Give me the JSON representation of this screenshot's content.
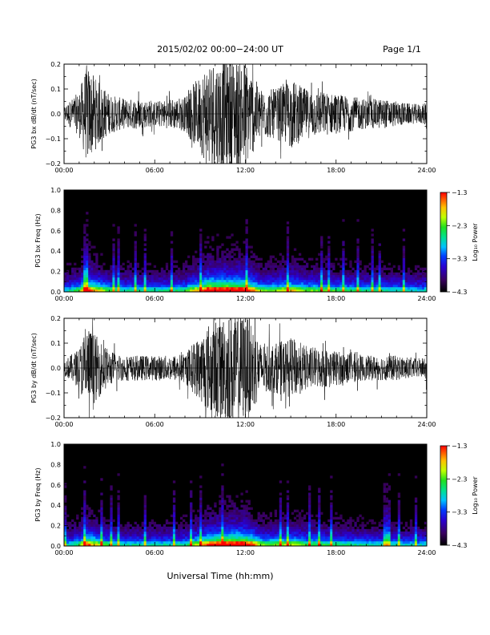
{
  "header": {
    "title": "2015/02/02  00:00−24:00 UT",
    "page": "Page 1/1"
  },
  "xlabel": "Universal Time (hh:mm)",
  "chart_data": [
    {
      "type": "line",
      "ylabel": "PG3 bx dB/dt (nT/sec)",
      "xlim": [
        "00:00",
        "24:00"
      ],
      "ylim": [
        -0.2,
        0.2
      ],
      "x_ticks": [
        "00:00",
        "06:00",
        "12:00",
        "18:00",
        "24:00"
      ],
      "y_ticks": [
        "−0.2",
        "−0.1",
        "0.0",
        "0.1",
        "0.2"
      ],
      "series_color": "#000000",
      "activity_envelope": {
        "hours": [
          0,
          1,
          1.5,
          2,
          3,
          4,
          5,
          6,
          7,
          8,
          8.5,
          9,
          9.5,
          10,
          11,
          12,
          12.5,
          13,
          14,
          15,
          15.5,
          16,
          17,
          18,
          19,
          20,
          21,
          22,
          23,
          23.8,
          24
        ],
        "amplitude": [
          0.03,
          0.09,
          0.2,
          0.15,
          0.08,
          0.06,
          0.06,
          0.05,
          0.06,
          0.07,
          0.12,
          0.15,
          0.22,
          0.22,
          0.22,
          0.22,
          0.16,
          0.1,
          0.1,
          0.14,
          0.12,
          0.1,
          0.09,
          0.08,
          0.07,
          0.06,
          0.06,
          0.05,
          0.04,
          0.04,
          0.07
        ]
      }
    },
    {
      "type": "heatmap",
      "ylabel": "PG3 bx Freq (Hz)",
      "xlim": [
        "00:00",
        "24:00"
      ],
      "ylim": [
        0,
        1.0
      ],
      "x_ticks": [
        "00:00",
        "06:00",
        "12:00",
        "18:00",
        "24:00"
      ],
      "y_ticks": [
        "0.0",
        "0.2",
        "0.4",
        "0.6",
        "0.8",
        "1.0"
      ],
      "colorbar": {
        "label": "Log₁₀ Power",
        "range": [
          -4.3,
          -1.3
        ],
        "ticks": [
          "−1.3",
          "−2.3",
          "−3.3",
          "−4.3"
        ]
      }
    },
    {
      "type": "line",
      "ylabel": "PG3 by dB/dt (nT/sec)",
      "xlim": [
        "00:00",
        "24:00"
      ],
      "ylim": [
        -0.2,
        0.2
      ],
      "x_ticks": [
        "00:00",
        "06:00",
        "12:00",
        "18:00",
        "24:00"
      ],
      "y_ticks": [
        "−0.2",
        "−0.1",
        "0.0",
        "0.1",
        "0.2"
      ],
      "series_color": "#000000",
      "activity_envelope": {
        "hours": [
          0,
          1,
          1.5,
          2,
          3,
          4,
          5,
          6,
          7,
          8,
          8.5,
          9,
          9.5,
          10,
          11,
          12,
          12.5,
          13,
          14,
          15,
          15.5,
          16,
          17,
          18,
          19,
          20,
          21,
          22,
          23,
          23.8,
          24
        ],
        "amplitude": [
          0.03,
          0.08,
          0.18,
          0.14,
          0.07,
          0.05,
          0.05,
          0.05,
          0.05,
          0.06,
          0.1,
          0.13,
          0.18,
          0.2,
          0.22,
          0.22,
          0.18,
          0.1,
          0.1,
          0.12,
          0.11,
          0.09,
          0.08,
          0.07,
          0.06,
          0.05,
          0.05,
          0.05,
          0.04,
          0.04,
          0.06
        ]
      }
    },
    {
      "type": "heatmap",
      "ylabel": "PG3 by Freq (Hz)",
      "xlim": [
        "00:00",
        "24:00"
      ],
      "ylim": [
        0,
        1.0
      ],
      "x_ticks": [
        "00:00",
        "06:00",
        "12:00",
        "18:00",
        "24:00"
      ],
      "y_ticks": [
        "0.0",
        "0.2",
        "0.4",
        "0.6",
        "0.8",
        "1.0"
      ],
      "colorbar": {
        "label": "Log₁₀ Power",
        "range": [
          -4.3,
          -1.3
        ],
        "ticks": [
          "−1.3",
          "−2.3",
          "−3.3",
          "−4.3"
        ]
      }
    }
  ]
}
